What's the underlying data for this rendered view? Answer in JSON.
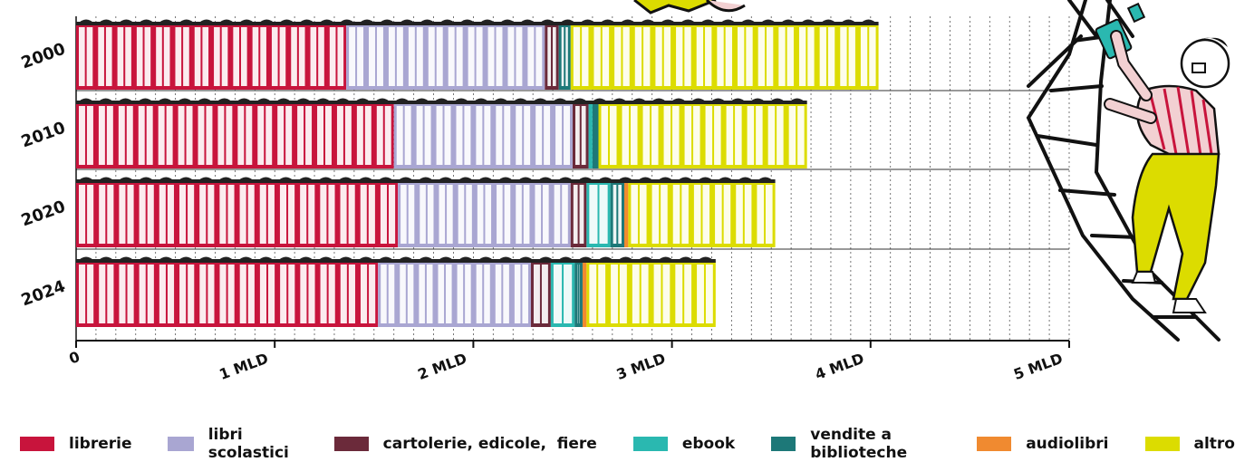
{
  "chart_data": {
    "type": "bar",
    "orientation": "horizontal",
    "stacked": true,
    "categories": [
      "2000",
      "2010",
      "2020",
      "2024"
    ],
    "series": [
      {
        "name": "librerie",
        "color": "#c8143c",
        "values": [
          1.36,
          1.6,
          1.62,
          1.52
        ]
      },
      {
        "name": "libri scolastici",
        "color": "#a9a6d2",
        "values": [
          1.0,
          0.9,
          0.87,
          0.77
        ]
      },
      {
        "name": "cartolerie, edicole,  fiere",
        "color": "#6b2a3a",
        "values": [
          0.07,
          0.08,
          0.08,
          0.1
        ]
      },
      {
        "name": "ebook",
        "color": "#2ab8b0",
        "values": [
          0.0,
          0.02,
          0.12,
          0.12
        ]
      },
      {
        "name": "vendite a biblioteche",
        "color": "#1d7878",
        "values": [
          0.06,
          0.03,
          0.07,
          0.04
        ]
      },
      {
        "name": "audiolibri",
        "color": "#f08a30",
        "values": [
          0.0,
          0.0,
          0.02,
          0.02
        ]
      },
      {
        "name": "altro",
        "color": "#dcdc00",
        "values": [
          1.55,
          1.05,
          0.74,
          0.65
        ]
      }
    ],
    "xaxis": {
      "ticks": [
        0,
        1,
        2,
        3,
        4,
        5
      ],
      "tick_labels": [
        "0",
        "1 MLD",
        "2 MLD",
        "3 MLD",
        "4 MLD",
        "5 MLD"
      ],
      "xlim": [
        0,
        5
      ]
    },
    "grid": true,
    "legend_position": "bottom"
  },
  "legend": [
    {
      "label": "librerie",
      "color": "#c8143c"
    },
    {
      "label": "libri scolastici",
      "color": "#a9a6d2"
    },
    {
      "label": "cartolerie, edicole,  fiere",
      "color": "#6b2a3a"
    },
    {
      "label": "ebook",
      "color": "#2ab8b0"
    },
    {
      "label": "vendite a biblioteche",
      "color": "#1d7878"
    },
    {
      "label": "audiolibri",
      "color": "#f08a30"
    },
    {
      "label": "altro",
      "color": "#dcdc00"
    }
  ]
}
